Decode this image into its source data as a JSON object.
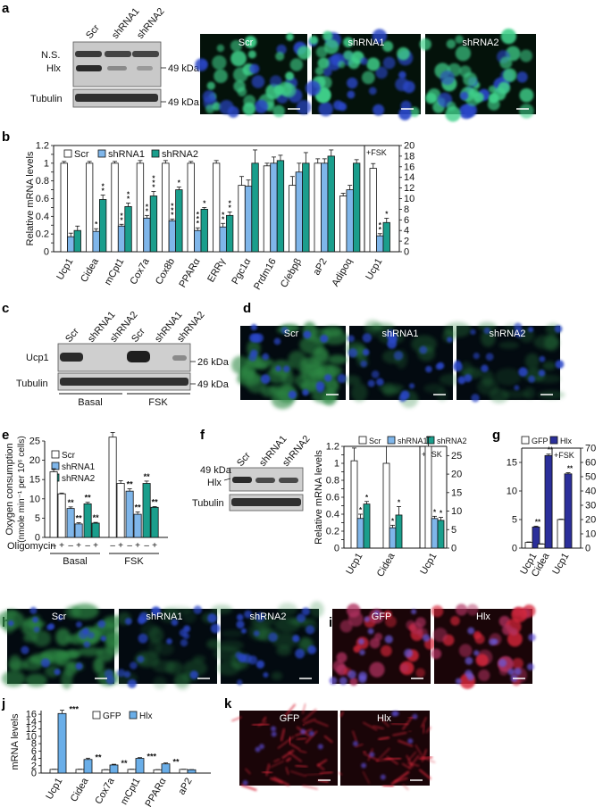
{
  "colors": {
    "scr": "#ffffff",
    "shRNA1": "#7fb6ea",
    "shRNA2": "#1a9e8c",
    "gfp": "#ffffff",
    "hlx": "#2b2f9a",
    "hlx_j": "#6aaee8",
    "mic_nucleus": "#2a46c8",
    "mic_green": "#3fd08a",
    "mic_red": "#d8283a"
  },
  "panels": {
    "a": "a",
    "b": "b",
    "c": "c",
    "d": "d",
    "e": "e",
    "f": "f",
    "g": "g",
    "h": "h",
    "i": "i",
    "j": "j",
    "k": "k"
  },
  "panel_a": {
    "lanes": [
      "Scr",
      "shRNA1",
      "shRNA2"
    ],
    "bands": [
      "N.S.",
      "Hlx",
      "Tubulin"
    ],
    "mw": [
      "49 kDa",
      "49 kDa"
    ],
    "images": [
      "Scr",
      "shRNA1",
      "shRNA2"
    ]
  },
  "panel_c": {
    "lanes": [
      "Scr",
      "shRNA1",
      "shRNA2",
      "Scr",
      "shRNA1",
      "shRNA2"
    ],
    "bands": [
      "Ucp1",
      "Tubulin"
    ],
    "mw": [
      "26 kDa",
      "49 kDa"
    ],
    "groups": [
      "Basal",
      "FSK"
    ]
  },
  "panel_d": {
    "images": [
      "Scr",
      "shRNA1",
      "shRNA2"
    ]
  },
  "panel_f_blot": {
    "lanes": [
      "Scr",
      "shRNA1",
      "shRNA2"
    ],
    "mw": "49 kDa",
    "bands": [
      "Hlx",
      "Tubulin"
    ]
  },
  "panel_h": {
    "images": [
      "Scr",
      "shRNA1",
      "shRNA2"
    ]
  },
  "panel_i": {
    "images": [
      "GFP",
      "Hlx"
    ]
  },
  "panel_k": {
    "images": [
      "GFP",
      "Hlx"
    ]
  },
  "chart_data": [
    {
      "panel": "b",
      "type": "bar",
      "title": "",
      "ylabel": "Relative mRNA levels",
      "ylim": [
        0,
        1.2
      ],
      "yticks": [
        "0",
        "0.1",
        "0.2",
        "0.3",
        "0.4",
        "0.5",
        "0.6",
        "0.7",
        "0.8",
        "0.9",
        "1",
        "1.1",
        "1.2"
      ],
      "y2lim": [
        0,
        20
      ],
      "y2ticks": [
        "0",
        "2",
        "4",
        "6",
        "8",
        "10",
        "12",
        "14",
        "16",
        "18",
        "20"
      ],
      "legend": [
        "Scr",
        "shRNA1",
        "shRNA2"
      ],
      "annotation": "+FSK",
      "categories": [
        "Ucp1",
        "Cidea",
        "mCpt1",
        "Cox7a",
        "Cox8b",
        "PPARα",
        "ERRγ",
        "Pgc1α",
        "Prdm16",
        "C/ebpβ",
        "aP2",
        "Adipoq",
        "Ucp1"
      ],
      "series": [
        {
          "name": "Scr",
          "values": [
            1,
            1,
            1,
            1,
            1,
            1,
            1,
            0.75,
            0.97,
            0.75,
            1,
            0.63,
            15.7
          ]
        },
        {
          "name": "shRNA1",
          "values": [
            0.17,
            0.23,
            0.29,
            0.38,
            0.35,
            0.24,
            0.28,
            0.74,
            1.0,
            0.9,
            1.0,
            0.7,
            3.0
          ]
        },
        {
          "name": "shRNA2",
          "values": [
            0.24,
            0.59,
            0.51,
            0.63,
            0.7,
            0.48,
            0.41,
            1.0,
            1.03,
            1.0,
            1.08,
            1.0,
            5.5
          ]
        }
      ],
      "errors": [
        [
          0.02,
          0.02,
          0.02,
          0.03,
          0.03,
          0.02,
          0.03,
          0.1,
          0.03,
          0.1,
          0.05,
          0.03,
          0.9
        ],
        [
          0.04,
          0.03,
          0.02,
          0.03,
          0.02,
          0.03,
          0.04,
          0.07,
          0.07,
          0.1,
          0.05,
          0.05,
          0.4
        ],
        [
          0.05,
          0.05,
          0.04,
          0.05,
          0.03,
          0.02,
          0.04,
          0.15,
          0.06,
          0.12,
          0.07,
          0.04,
          0.8
        ]
      ],
      "stars": [
        [
          "",
          "",
          ""
        ],
        [
          "",
          "*",
          "**"
        ],
        [
          "",
          "**",
          "**"
        ],
        [
          "",
          "**",
          "***"
        ],
        [
          "",
          "***",
          "*"
        ],
        [
          "",
          "***",
          "*"
        ],
        [
          "",
          "**",
          "**"
        ],
        [
          "",
          "",
          ""
        ],
        [
          "",
          "",
          ""
        ],
        [
          "",
          "",
          ""
        ],
        [
          "",
          "",
          ""
        ],
        [
          "",
          "",
          ""
        ],
        [
          "",
          "**",
          "*"
        ]
      ]
    },
    {
      "panel": "e",
      "type": "bar",
      "title": "",
      "ylabel_line1": "Oxygen consumption",
      "ylabel_line2": "(nmole min⁻¹ per 10⁶ cells)",
      "ylim": [
        0,
        25
      ],
      "yticks": [
        "0",
        "5",
        "10",
        "15",
        "20",
        "25"
      ],
      "legend": [
        "Scr",
        "shRNA1",
        "shRNA2"
      ],
      "xlabel": "Oligomycin",
      "oligo_signs": [
        "–",
        "+",
        "–",
        "+",
        "–",
        "+",
        "–",
        "+",
        "–",
        "+",
        "–",
        "+"
      ],
      "groups": [
        "Basal",
        "FSK"
      ],
      "bars": [
        {
          "s": "Scr",
          "v": 17.0,
          "e": 0.8,
          "st": ""
        },
        {
          "s": "Scr",
          "v": 11.3,
          "e": 0.2,
          "st": ""
        },
        {
          "s": "shRNA1",
          "v": 7.5,
          "e": 0.4,
          "st": "**"
        },
        {
          "s": "shRNA1",
          "v": 3.5,
          "e": 0.3,
          "st": "**"
        },
        {
          "s": "shRNA2",
          "v": 8.7,
          "e": 0.4,
          "st": "**"
        },
        {
          "s": "shRNA2",
          "v": 3.7,
          "e": 0.2,
          "st": "**"
        },
        {
          "s": "Scr",
          "v": 26.0,
          "e": 1.2,
          "st": ""
        },
        {
          "s": "Scr",
          "v": 14.0,
          "e": 0.7,
          "st": ""
        },
        {
          "s": "shRNA1",
          "v": 12.0,
          "e": 0.6,
          "st": "**"
        },
        {
          "s": "shRNA1",
          "v": 6.0,
          "e": 0.6,
          "st": "**"
        },
        {
          "s": "shRNA2",
          "v": 14.0,
          "e": 0.6,
          "st": "**"
        },
        {
          "s": "shRNA2",
          "v": 7.8,
          "e": 0.2,
          "st": "**"
        }
      ]
    },
    {
      "panel": "f",
      "type": "bar",
      "title": "",
      "ylabel": "Relative mRNA levels",
      "ylim": [
        0,
        1.2
      ],
      "yticks": [
        "0",
        "0.1",
        "0.2",
        "0.3",
        "0.4",
        "0.5",
        "0.6",
        "0.7",
        "0.8",
        "0.9",
        "1",
        "1.1",
        "1.2"
      ],
      "y2lim": [
        0,
        27.5
      ],
      "y2ticks": [
        "0",
        "5",
        "10",
        "15",
        "20",
        "25"
      ],
      "legend": [
        "Scr",
        "shRNA1",
        "shRNA2"
      ],
      "annotation": "+FSK",
      "categories": [
        "Ucp1",
        "Cidea",
        "Ucp1"
      ],
      "series": [
        {
          "name": "Scr",
          "values": [
            1.03,
            1.0,
            27.5
          ]
        },
        {
          "name": "shRNA1",
          "values": [
            0.35,
            0.24,
            8.0
          ]
        },
        {
          "name": "shRNA2",
          "values": [
            0.52,
            0.39,
            7.5
          ]
        }
      ],
      "errors": [
        [
          0.15,
          0.2,
          2.5
        ],
        [
          0.05,
          0.03,
          0.6
        ],
        [
          0.03,
          0.1,
          0.8
        ]
      ],
      "stars": [
        [
          "",
          "",
          ""
        ],
        [
          "*",
          "*",
          "*"
        ],
        [
          "*",
          "*",
          "*"
        ]
      ]
    },
    {
      "panel": "g",
      "type": "bar",
      "title": "",
      "ylim": [
        0,
        17.5
      ],
      "yticks": [
        "0",
        "5",
        "10",
        "15"
      ],
      "y2lim": [
        0,
        70
      ],
      "y2ticks": [
        "0",
        "10",
        "20",
        "30",
        "40",
        "50",
        "60",
        "70"
      ],
      "legend": [
        "GFP",
        "Hlx"
      ],
      "annotation": "+FSK",
      "categories": [
        "Ucp1",
        "Cidea",
        "Ucp1"
      ],
      "series": [
        {
          "name": "GFP",
          "values": [
            1.0,
            0.7,
            20.0
          ]
        },
        {
          "name": "Hlx",
          "values": [
            3.7,
            16.2,
            52.0
          ]
        }
      ],
      "errors": [
        [
          0.08,
          0.06,
          0.3
        ],
        [
          0.15,
          0.25,
          0.8
        ]
      ],
      "stars": [
        [
          "",
          "",
          ""
        ],
        [
          "**",
          "**",
          "**"
        ]
      ]
    },
    {
      "panel": "j",
      "type": "bar",
      "title": "",
      "ylabel": "mRNA levels",
      "ylim": [
        0,
        17
      ],
      "yticks": [
        "0",
        "2",
        "4",
        "6",
        "8",
        "10",
        "12",
        "14",
        "16"
      ],
      "legend": [
        "GFP",
        "Hlx"
      ],
      "categories": [
        "Ucp1",
        "Cidea",
        "Cox7a",
        "mCpt1",
        "PPARα",
        "aP2"
      ],
      "series": [
        {
          "name": "GFP",
          "values": [
            1.0,
            1.0,
            0.9,
            1.0,
            0.9,
            1.0
          ]
        },
        {
          "name": "Hlx",
          "values": [
            16.2,
            3.7,
            2.2,
            4.0,
            2.5,
            0.9
          ]
        }
      ],
      "errors": [
        [
          0.05,
          0.05,
          0.05,
          0.05,
          0.05,
          0.05
        ],
        [
          0.9,
          0.35,
          0.2,
          0.2,
          0.25,
          0.05
        ]
      ],
      "stars": [
        [
          "",
          "",
          "",
          "",
          "",
          ""
        ],
        [
          "***",
          "**",
          "**",
          "***",
          "**",
          ""
        ]
      ]
    }
  ]
}
